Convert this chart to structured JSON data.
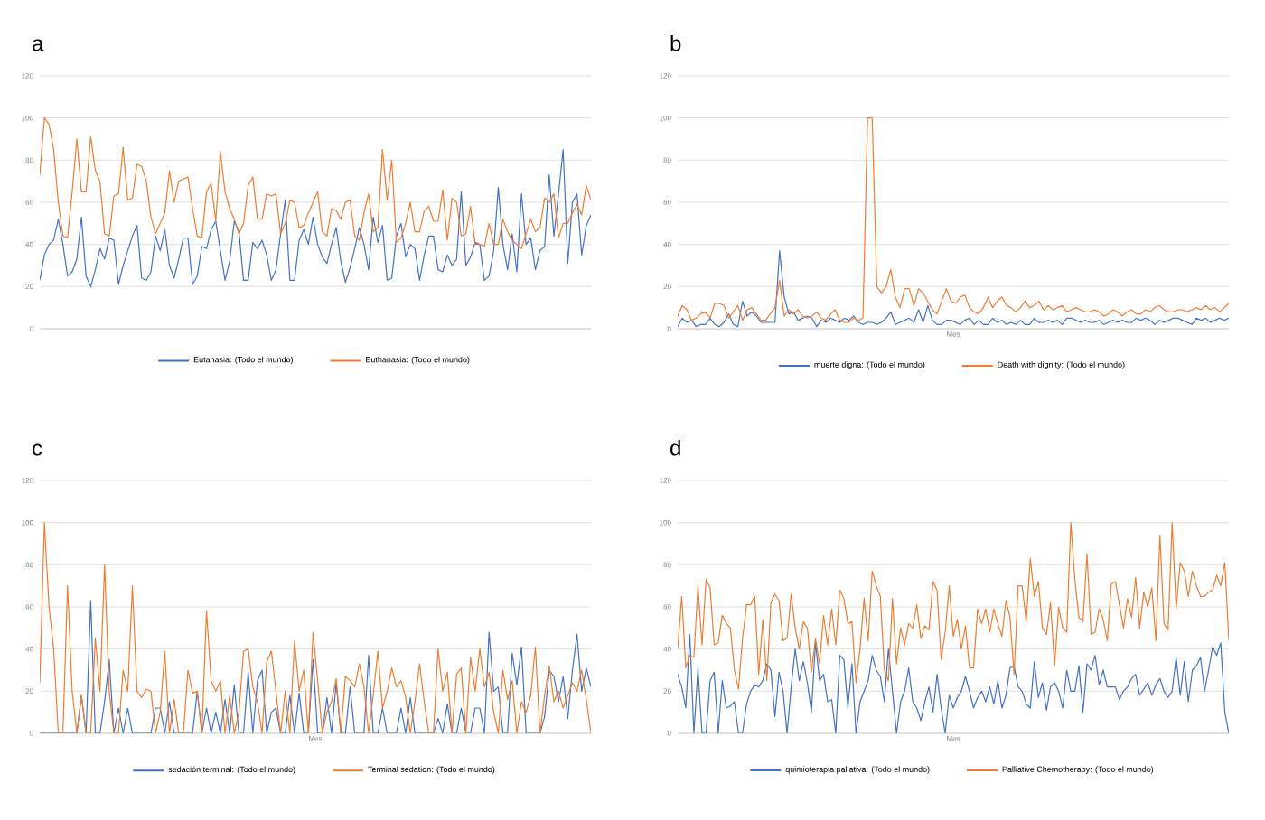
{
  "chart_data": [
    {
      "type": "line",
      "title": "a",
      "categories": [
        null,
        null,
        null,
        null,
        null,
        null,
        null,
        null,
        null,
        null,
        null,
        null,
        null,
        null,
        null,
        null,
        null,
        null,
        null,
        null,
        null,
        null,
        null,
        null,
        null,
        null,
        null,
        null,
        null,
        null,
        null,
        null,
        null,
        null,
        null,
        null,
        null,
        null,
        null,
        null,
        null,
        null,
        null,
        null,
        null,
        null,
        null,
        null,
        null,
        null,
        null,
        null,
        null,
        null,
        null,
        null,
        null,
        null,
        null,
        null,
        null,
        null,
        null,
        null,
        null,
        null,
        null,
        null,
        null,
        null,
        null,
        null,
        null,
        null,
        null,
        null,
        null,
        null,
        null,
        null,
        null,
        null,
        null,
        null,
        null,
        null,
        null,
        null,
        null,
        null,
        null,
        null,
        null,
        null,
        null,
        null,
        null,
        null,
        null,
        null,
        null,
        null,
        null,
        null,
        null,
        null,
        null,
        null,
        null,
        null,
        null,
        null,
        null,
        null,
        null,
        null,
        null,
        null,
        null,
        null
      ],
      "ylim": [
        0,
        120
      ],
      "yticks": [
        0,
        20,
        40,
        60,
        80,
        100,
        120
      ],
      "grid": "y",
      "legend": "bottom",
      "tick_labels": "y",
      "marker": "none",
      "line_style": "solid",
      "series": [
        {
          "name": "Eutanasia: (Todo el mundo)",
          "color": "#4472c4",
          "values": [
            23,
            35,
            40,
            42,
            52,
            40,
            25,
            27,
            33,
            53,
            25,
            20,
            28,
            38,
            33,
            43,
            42,
            21,
            30,
            37,
            44,
            49,
            24,
            23,
            27,
            44,
            37,
            47,
            30,
            24,
            33,
            43,
            43,
            21,
            25,
            39,
            38,
            47,
            51,
            37,
            23,
            32,
            51,
            46,
            23,
            23,
            41,
            38,
            42,
            35,
            23,
            28,
            45,
            61,
            23,
            23,
            42,
            47,
            40,
            53,
            40,
            34,
            31,
            40,
            48,
            32,
            22,
            29,
            38,
            48,
            40,
            28,
            53,
            41,
            49,
            23,
            24,
            44,
            50,
            34,
            40,
            38,
            23,
            35,
            44,
            44,
            28,
            27,
            35,
            30,
            33,
            65,
            30,
            34,
            41,
            40,
            23,
            25,
            37,
            67,
            40,
            28,
            45,
            27,
            64,
            40,
            43,
            28,
            37,
            39,
            73,
            44,
            64,
            85,
            31,
            60,
            64,
            35,
            49,
            54
          ]
        },
        {
          "name": "Euthanasia: (Todo el mundo)",
          "color": "#ed7d31",
          "values": [
            73,
            100,
            97,
            85,
            60,
            44,
            43,
            65,
            90,
            65,
            65,
            91,
            75,
            70,
            45,
            44,
            63,
            64,
            86,
            61,
            62,
            78,
            77,
            70,
            53,
            45,
            50,
            55,
            75,
            60,
            70,
            71,
            72,
            57,
            44,
            43,
            65,
            69,
            51,
            84,
            65,
            57,
            52,
            45,
            50,
            68,
            72,
            52,
            52,
            64,
            63,
            64,
            45,
            50,
            61,
            60,
            48,
            49,
            55,
            60,
            65,
            46,
            44,
            57,
            56,
            52,
            60,
            61,
            44,
            42,
            55,
            64,
            46,
            48,
            85,
            61,
            80,
            41,
            43,
            50,
            60,
            46,
            46,
            56,
            58,
            51,
            51,
            66,
            42,
            62,
            60,
            44,
            45,
            58,
            40,
            40,
            39,
            50,
            40,
            40,
            52,
            46,
            42,
            40,
            38,
            45,
            52,
            46,
            48,
            62,
            60,
            64,
            43,
            50,
            50,
            55,
            59,
            54,
            68,
            61
          ]
        }
      ]
    },
    {
      "type": "line",
      "title": "b",
      "xlabel": "Mes",
      "categories": [
        null,
        null,
        null,
        null,
        null,
        null,
        null,
        null,
        null,
        null,
        null,
        null,
        null,
        null,
        null,
        null,
        null,
        null,
        null,
        null,
        null,
        null,
        null,
        null,
        null,
        null,
        null,
        null,
        null,
        null,
        null,
        null,
        null,
        null,
        null,
        null,
        null,
        null,
        null,
        null,
        null,
        null,
        null,
        null,
        null,
        null,
        null,
        null,
        null,
        null,
        null,
        null,
        null,
        null,
        null,
        null,
        null,
        null,
        null,
        null,
        null,
        null,
        null,
        null,
        null,
        null,
        null,
        null,
        null,
        null,
        null,
        null,
        null,
        null,
        null,
        null,
        null,
        null,
        null,
        null,
        null,
        null,
        null,
        null,
        null,
        null,
        null,
        null,
        null,
        null,
        null,
        null,
        null,
        null,
        null,
        null,
        null,
        null,
        null,
        null,
        null,
        null,
        null,
        null,
        null,
        null,
        null,
        null,
        null,
        null,
        null,
        null,
        null,
        null,
        null,
        null,
        null,
        null,
        null,
        null
      ],
      "ylim": [
        0,
        120
      ],
      "yticks": [
        0,
        20,
        40,
        60,
        80,
        100,
        120
      ],
      "grid": "y",
      "legend": "bottom",
      "tick_labels": "y",
      "marker": "none",
      "line_style": "solid",
      "series": [
        {
          "name": "muerte digna: (Todo el mundo)",
          "color": "#4472c4",
          "values": [
            1,
            5,
            3,
            4,
            1,
            2,
            2,
            5,
            2,
            1,
            3,
            7,
            2,
            1,
            13,
            6,
            8,
            6,
            3,
            3,
            3,
            3,
            37,
            15,
            7,
            8,
            4,
            5,
            6,
            5,
            1,
            4,
            3,
            5,
            4,
            3,
            5,
            4,
            6,
            3,
            2,
            3,
            3,
            2,
            3,
            5,
            8,
            2,
            3,
            4,
            5,
            3,
            9,
            3,
            11,
            4,
            2,
            2,
            4,
            4,
            3,
            2,
            4,
            5,
            2,
            4,
            2,
            2,
            5,
            3,
            4,
            2,
            3,
            2,
            4,
            2,
            2,
            5,
            3,
            3,
            4,
            3,
            4,
            2,
            5,
            5,
            4,
            3,
            4,
            3,
            3,
            4,
            2,
            3,
            4,
            3,
            4,
            3,
            3,
            5,
            4,
            5,
            4,
            2,
            4,
            3,
            4,
            5,
            5,
            4,
            3,
            2,
            5,
            4,
            5,
            3,
            4,
            5,
            4,
            5
          ]
        },
        {
          "name": "Death with dignity: (Todo el mundo)",
          "color": "#ed7d31",
          "values": [
            6,
            11,
            9,
            4,
            5,
            7,
            8,
            5,
            12,
            12,
            11,
            5,
            8,
            11,
            4,
            9,
            10,
            7,
            4,
            4,
            7,
            10,
            23,
            6,
            9,
            7,
            9,
            6,
            5,
            6,
            8,
            5,
            4,
            7,
            9,
            4,
            3,
            3,
            5,
            4,
            5,
            100,
            100,
            20,
            17,
            20,
            28,
            15,
            10,
            19,
            19,
            11,
            19,
            17,
            13,
            9,
            7,
            13,
            19,
            13,
            12,
            15,
            16,
            10,
            8,
            7,
            10,
            15,
            10,
            13,
            15,
            11,
            10,
            8,
            10,
            13,
            10,
            11,
            13,
            9,
            11,
            9,
            10,
            11,
            8,
            9,
            10,
            9,
            8,
            8,
            9,
            8,
            6,
            7,
            9,
            8,
            6,
            8,
            9,
            7,
            7,
            9,
            8,
            10,
            11,
            9,
            8,
            8,
            9,
            9,
            8,
            9,
            10,
            9,
            11,
            9,
            10,
            8,
            10,
            12
          ]
        }
      ]
    },
    {
      "type": "line",
      "title": "c",
      "xlabel": "Mes",
      "categories": [
        null,
        null,
        null,
        null,
        null,
        null,
        null,
        null,
        null,
        null,
        null,
        null,
        null,
        null,
        null,
        null,
        null,
        null,
        null,
        null,
        null,
        null,
        null,
        null,
        null,
        null,
        null,
        null,
        null,
        null,
        null,
        null,
        null,
        null,
        null,
        null,
        null,
        null,
        null,
        null,
        null,
        null,
        null,
        null,
        null,
        null,
        null,
        null,
        null,
        null,
        null,
        null,
        null,
        null,
        null,
        null,
        null,
        null,
        null,
        null,
        null,
        null,
        null,
        null,
        null,
        null,
        null,
        null,
        null,
        null,
        null,
        null,
        null,
        null,
        null,
        null,
        null,
        null,
        null,
        null,
        null,
        null,
        null,
        null,
        null,
        null,
        null,
        null,
        null,
        null,
        null,
        null,
        null,
        null,
        null,
        null,
        null,
        null,
        null,
        null,
        null,
        null,
        null,
        null,
        null,
        null,
        null,
        null,
        null,
        null,
        null,
        null,
        null,
        null,
        null,
        null,
        null,
        null,
        null,
        null
      ],
      "ylim": [
        0,
        120
      ],
      "yticks": [
        0,
        20,
        40,
        60,
        80,
        100,
        120
      ],
      "grid": "y",
      "legend": "bottom",
      "tick_labels": "y",
      "marker": "none",
      "line_style": "solid",
      "series": [
        {
          "name": "sedación terminal: (Todo el mundo)",
          "color": "#4472c4",
          "values": [
            0,
            0,
            0,
            0,
            0,
            0,
            0,
            0,
            0,
            18,
            0,
            63,
            0,
            0,
            15,
            35,
            0,
            12,
            0,
            12,
            0,
            0,
            0,
            0,
            0,
            12,
            12,
            0,
            15,
            0,
            0,
            0,
            0,
            0,
            20,
            0,
            12,
            0,
            10,
            0,
            16,
            0,
            23,
            0,
            0,
            29,
            0,
            25,
            30,
            0,
            10,
            12,
            0,
            0,
            18,
            0,
            19,
            0,
            0,
            35,
            0,
            0,
            17,
            0,
            24,
            0,
            0,
            22,
            0,
            0,
            0,
            37,
            0,
            0,
            12,
            0,
            0,
            0,
            12,
            0,
            17,
            0,
            0,
            0,
            0,
            0,
            7,
            0,
            14,
            0,
            0,
            12,
            0,
            0,
            12,
            12,
            0,
            48,
            20,
            22,
            0,
            0,
            38,
            23,
            41,
            0,
            0,
            0,
            0,
            8,
            30,
            27,
            15,
            27,
            7,
            30,
            47,
            20,
            31,
            22
          ]
        },
        {
          "name": "Terminal sedation: (Todo el mundo)",
          "color": "#ed7d31",
          "values": [
            24,
            100,
            60,
            40,
            0,
            0,
            70,
            20,
            0,
            18,
            0,
            0,
            45,
            20,
            80,
            20,
            0,
            0,
            30,
            20,
            70,
            20,
            17,
            21,
            20,
            0,
            10,
            39,
            0,
            16,
            0,
            0,
            30,
            19,
            20,
            0,
            58,
            25,
            20,
            25,
            0,
            18,
            0,
            10,
            39,
            40,
            22,
            15,
            0,
            34,
            39,
            20,
            0,
            20,
            0,
            44,
            20,
            30,
            0,
            48,
            25,
            0,
            10,
            15,
            26,
            0,
            27,
            25,
            22,
            33,
            22,
            0,
            18,
            39,
            12,
            20,
            31,
            22,
            25,
            17,
            0,
            15,
            33,
            15,
            0,
            0,
            40,
            20,
            29,
            0,
            28,
            31,
            0,
            36,
            20,
            40,
            22,
            29,
            10,
            0,
            30,
            16,
            25,
            0,
            15,
            10,
            18,
            41,
            0,
            18,
            32,
            15,
            20,
            12,
            18,
            24,
            20,
            30,
            16,
            0
          ]
        }
      ]
    },
    {
      "type": "line",
      "title": "d",
      "xlabel": "Mes",
      "categories": [
        null,
        null,
        null,
        null,
        null,
        null,
        null,
        null,
        null,
        null,
        null,
        null,
        null,
        null,
        null,
        null,
        null,
        null,
        null,
        null,
        null,
        null,
        null,
        null,
        null,
        null,
        null,
        null,
        null,
        null,
        null,
        null,
        null,
        null,
        null,
        null,
        null,
        null,
        null,
        null,
        null,
        null,
        null,
        null,
        null,
        null,
        null,
        null,
        null,
        null,
        null,
        null,
        null,
        null,
        null,
        null,
        null,
        null,
        null,
        null,
        null,
        null,
        null,
        null,
        null,
        null,
        null,
        null,
        null,
        null,
        null,
        null,
        null,
        null,
        null,
        null,
        null,
        null,
        null,
        null,
        null,
        null,
        null,
        null,
        null,
        null,
        null,
        null,
        null,
        null,
        null,
        null,
        null,
        null,
        null,
        null,
        null,
        null,
        null,
        null,
        null,
        null,
        null,
        null,
        null,
        null,
        null,
        null,
        null,
        null,
        null,
        null,
        null,
        null,
        null,
        null,
        null,
        null,
        null,
        null,
        null,
        null,
        null,
        null,
        null,
        null,
        null,
        null,
        null,
        null,
        null,
        null,
        null,
        null,
        null,
        null,
        null
      ],
      "ylim": [
        0,
        120
      ],
      "yticks": [
        0,
        20,
        40,
        60,
        80,
        100,
        120
      ],
      "grid": "y",
      "legend": "bottom",
      "tick_labels": "y",
      "marker": "none",
      "line_style": "solid",
      "series": [
        {
          "name": "quimioterapia paliativa: (Todo el mundo)",
          "color": "#4472c4",
          "values": [
            28,
            22,
            12,
            47,
            0,
            31,
            0,
            0,
            25,
            29,
            0,
            25,
            12,
            13,
            15,
            0,
            0,
            14,
            20,
            23,
            22,
            25,
            33,
            30,
            8,
            29,
            20,
            0,
            22,
            40,
            25,
            34,
            24,
            10,
            43,
            25,
            28,
            15,
            16,
            0,
            37,
            35,
            12,
            33,
            0,
            15,
            20,
            25,
            37,
            30,
            27,
            15,
            40,
            20,
            0,
            15,
            20,
            31,
            15,
            12,
            6,
            15,
            22,
            10,
            28,
            12,
            0,
            18,
            12,
            17,
            20,
            27,
            20,
            12,
            17,
            20,
            15,
            22,
            14,
            25,
            12,
            18,
            31,
            32,
            22,
            20,
            14,
            12,
            34,
            17,
            24,
            11,
            22,
            24,
            20,
            12,
            30,
            20,
            20,
            32,
            10,
            33,
            30,
            37,
            23,
            30,
            22,
            22,
            22,
            16,
            20,
            22,
            26,
            28,
            18,
            21,
            24,
            18,
            23,
            26,
            20,
            17,
            20,
            36,
            18,
            34,
            15,
            30,
            32,
            36,
            20,
            30,
            41,
            37,
            43,
            10,
            0
          ]
        },
        {
          "name": "Palliative Chemotherapy: (Todo el mundo)",
          "color": "#ed7d31",
          "values": [
            40,
            65,
            31,
            37,
            36,
            70,
            42,
            73,
            69,
            42,
            43,
            56,
            52,
            50,
            30,
            21,
            45,
            61,
            61,
            65,
            28,
            54,
            25,
            62,
            66,
            63,
            44,
            45,
            66,
            50,
            40,
            53,
            50,
            29,
            45,
            33,
            56,
            42,
            59,
            42,
            68,
            64,
            52,
            53,
            24,
            40,
            64,
            44,
            77,
            70,
            65,
            30,
            25,
            64,
            33,
            50,
            42,
            52,
            50,
            61,
            45,
            51,
            49,
            72,
            68,
            35,
            48,
            70,
            46,
            54,
            40,
            51,
            31,
            31,
            59,
            52,
            59,
            48,
            59,
            52,
            46,
            63,
            55,
            28,
            70,
            70,
            53,
            83,
            65,
            72,
            50,
            47,
            62,
            32,
            60,
            50,
            48,
            100,
            73,
            55,
            53,
            85,
            47,
            48,
            59,
            54,
            44,
            71,
            72,
            61,
            50,
            64,
            55,
            74,
            50,
            67,
            60,
            69,
            44,
            94,
            52,
            49,
            100,
            59,
            81,
            77,
            65,
            77,
            70,
            65,
            65,
            67,
            68,
            75,
            70,
            81,
            44
          ]
        }
      ]
    }
  ]
}
